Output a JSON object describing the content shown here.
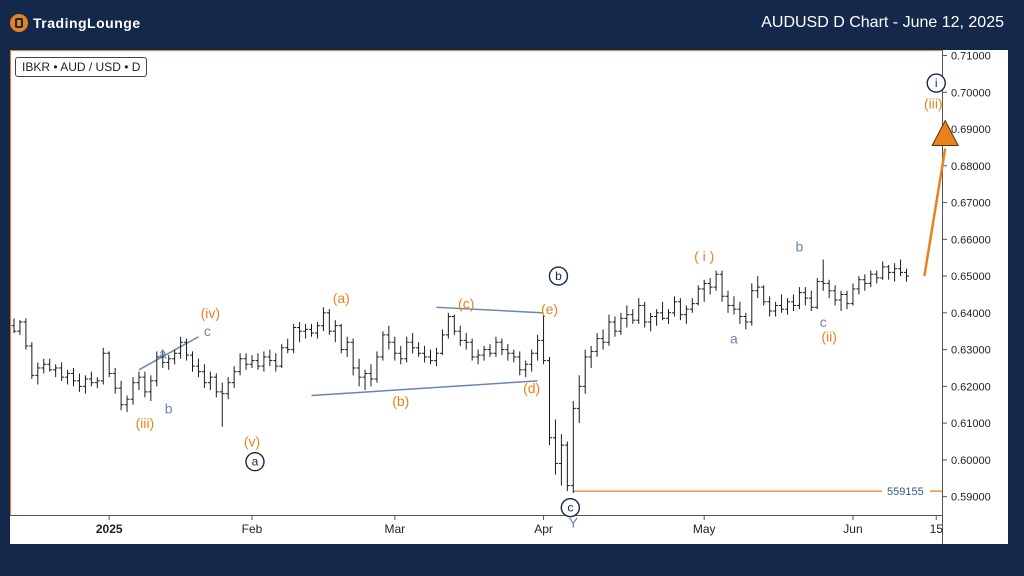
{
  "header": {
    "logo_text": "TradingLounge",
    "title": "AUDUSD D Chart - June 12, 2025"
  },
  "symbol_label": "IBKR • AUD / USD • D",
  "chart_data": {
    "type": "candlestick",
    "ylim": [
      0.585,
      0.7115
    ],
    "y_ticks": [
      "0.71000",
      "0.70000",
      "0.69000",
      "0.68000",
      "0.67000",
      "0.66000",
      "0.65000",
      "0.64000",
      "0.63000",
      "0.62000",
      "0.61000",
      "0.60000",
      "0.59000"
    ],
    "x_ticks": [
      {
        "label": "2025",
        "bar": 16,
        "bold": true
      },
      {
        "label": "Feb",
        "bar": 40
      },
      {
        "label": "Mar",
        "bar": 64
      },
      {
        "label": "Apr",
        "bar": 89
      },
      {
        "label": "May",
        "bar": 116
      },
      {
        "label": "Jun",
        "bar": 141
      },
      {
        "label": "15",
        "bar": 155
      }
    ],
    "bars": [
      [
        0.6365,
        0.6385,
        0.6345,
        0.635
      ],
      [
        0.635,
        0.638,
        0.634,
        0.6375
      ],
      [
        0.6375,
        0.6385,
        0.63,
        0.631
      ],
      [
        0.631,
        0.632,
        0.622,
        0.623
      ],
      [
        0.623,
        0.6265,
        0.6205,
        0.625
      ],
      [
        0.625,
        0.6275,
        0.6235,
        0.626
      ],
      [
        0.626,
        0.6275,
        0.624,
        0.6245
      ],
      [
        0.6245,
        0.626,
        0.6225,
        0.625
      ],
      [
        0.625,
        0.6265,
        0.6215,
        0.6225
      ],
      [
        0.6225,
        0.6245,
        0.6205,
        0.6235
      ],
      [
        0.6235,
        0.625,
        0.62,
        0.6215
      ],
      [
        0.6215,
        0.6235,
        0.6185,
        0.62
      ],
      [
        0.62,
        0.623,
        0.618,
        0.622
      ],
      [
        0.622,
        0.624,
        0.62,
        0.621
      ],
      [
        0.621,
        0.6225,
        0.6195,
        0.6215
      ],
      [
        0.6215,
        0.6305,
        0.6205,
        0.629
      ],
      [
        0.629,
        0.6295,
        0.6225,
        0.6235
      ],
      [
        0.6235,
        0.625,
        0.618,
        0.6195
      ],
      [
        0.6195,
        0.6215,
        0.6135,
        0.615
      ],
      [
        0.615,
        0.6175,
        0.613,
        0.6165
      ],
      [
        0.6165,
        0.6225,
        0.615,
        0.621
      ],
      [
        0.621,
        0.624,
        0.619,
        0.6225
      ],
      [
        0.6225,
        0.624,
        0.617,
        0.6185
      ],
      [
        0.6185,
        0.623,
        0.616,
        0.6215
      ],
      [
        0.6215,
        0.6295,
        0.62,
        0.628
      ],
      [
        0.628,
        0.63,
        0.625,
        0.6265
      ],
      [
        0.6265,
        0.6285,
        0.6245,
        0.6275
      ],
      [
        0.6275,
        0.63,
        0.626,
        0.629
      ],
      [
        0.629,
        0.6335,
        0.6275,
        0.632
      ],
      [
        0.632,
        0.633,
        0.627,
        0.6285
      ],
      [
        0.6285,
        0.6295,
        0.624,
        0.6255
      ],
      [
        0.6255,
        0.6275,
        0.6225,
        0.624
      ],
      [
        0.624,
        0.626,
        0.6195,
        0.621
      ],
      [
        0.621,
        0.624,
        0.619,
        0.6225
      ],
      [
        0.6225,
        0.6235,
        0.617,
        0.6185
      ],
      [
        0.6185,
        0.621,
        0.609,
        0.618
      ],
      [
        0.618,
        0.6225,
        0.6165,
        0.621
      ],
      [
        0.621,
        0.6255,
        0.6195,
        0.624
      ],
      [
        0.624,
        0.629,
        0.623,
        0.6275
      ],
      [
        0.6275,
        0.629,
        0.6245,
        0.626
      ],
      [
        0.626,
        0.6285,
        0.625,
        0.627
      ],
      [
        0.627,
        0.629,
        0.6245,
        0.6255
      ],
      [
        0.6255,
        0.6295,
        0.624,
        0.628
      ],
      [
        0.628,
        0.63,
        0.6255,
        0.627
      ],
      [
        0.627,
        0.629,
        0.624,
        0.6255
      ],
      [
        0.6255,
        0.6315,
        0.625,
        0.6305
      ],
      [
        0.6305,
        0.633,
        0.629,
        0.63
      ],
      [
        0.63,
        0.637,
        0.629,
        0.636
      ],
      [
        0.636,
        0.6375,
        0.632,
        0.635
      ],
      [
        0.635,
        0.637,
        0.633,
        0.6355
      ],
      [
        0.6355,
        0.637,
        0.6335,
        0.6345
      ],
      [
        0.6345,
        0.6375,
        0.633,
        0.6365
      ],
      [
        0.6365,
        0.6415,
        0.635,
        0.64
      ],
      [
        0.64,
        0.641,
        0.634,
        0.635
      ],
      [
        0.635,
        0.638,
        0.632,
        0.6365
      ],
      [
        0.6365,
        0.637,
        0.629,
        0.63
      ],
      [
        0.63,
        0.6335,
        0.628,
        0.632
      ],
      [
        0.632,
        0.633,
        0.623,
        0.625
      ],
      [
        0.625,
        0.6275,
        0.62,
        0.6225
      ],
      [
        0.6225,
        0.6245,
        0.619,
        0.6235
      ],
      [
        0.6235,
        0.626,
        0.62,
        0.622
      ],
      [
        0.622,
        0.6295,
        0.621,
        0.628
      ],
      [
        0.628,
        0.635,
        0.627,
        0.634
      ],
      [
        0.634,
        0.6365,
        0.63,
        0.632
      ],
      [
        0.632,
        0.6335,
        0.627,
        0.629
      ],
      [
        0.629,
        0.631,
        0.626,
        0.6275
      ],
      [
        0.6275,
        0.6335,
        0.6265,
        0.632
      ],
      [
        0.632,
        0.6345,
        0.629,
        0.6305
      ],
      [
        0.6305,
        0.632,
        0.628,
        0.629
      ],
      [
        0.629,
        0.631,
        0.6265,
        0.628
      ],
      [
        0.628,
        0.63,
        0.626,
        0.627
      ],
      [
        0.627,
        0.6305,
        0.6255,
        0.629
      ],
      [
        0.629,
        0.6355,
        0.6285,
        0.634
      ],
      [
        0.634,
        0.64,
        0.633,
        0.639
      ],
      [
        0.639,
        0.6395,
        0.634,
        0.635
      ],
      [
        0.635,
        0.6365,
        0.631,
        0.6325
      ],
      [
        0.6325,
        0.6345,
        0.63,
        0.632
      ],
      [
        0.632,
        0.633,
        0.627,
        0.628
      ],
      [
        0.628,
        0.63,
        0.626,
        0.6285
      ],
      [
        0.6285,
        0.631,
        0.627,
        0.63
      ],
      [
        0.63,
        0.6315,
        0.628,
        0.629
      ],
      [
        0.629,
        0.6335,
        0.628,
        0.632
      ],
      [
        0.632,
        0.633,
        0.6285,
        0.63
      ],
      [
        0.63,
        0.6315,
        0.627,
        0.629
      ],
      [
        0.629,
        0.63,
        0.6265,
        0.628
      ],
      [
        0.628,
        0.6295,
        0.623,
        0.6245
      ],
      [
        0.6245,
        0.627,
        0.6225,
        0.626
      ],
      [
        0.626,
        0.63,
        0.624,
        0.629
      ],
      [
        0.629,
        0.634,
        0.627,
        0.6325
      ],
      [
        0.6325,
        0.6395,
        0.626,
        0.627
      ],
      [
        0.627,
        0.628,
        0.604,
        0.606
      ],
      [
        0.606,
        0.611,
        0.596,
        0.599
      ],
      [
        0.599,
        0.607,
        0.593,
        0.604
      ],
      [
        0.604,
        0.605,
        0.5915,
        0.593
      ],
      [
        0.593,
        0.616,
        0.591,
        0.614
      ],
      [
        0.614,
        0.623,
        0.61,
        0.62
      ],
      [
        0.62,
        0.63,
        0.618,
        0.628
      ],
      [
        0.628,
        0.631,
        0.625,
        0.6295
      ],
      [
        0.6295,
        0.6345,
        0.628,
        0.633
      ],
      [
        0.633,
        0.6355,
        0.63,
        0.632
      ],
      [
        0.632,
        0.6395,
        0.631,
        0.6375
      ],
      [
        0.6375,
        0.639,
        0.6335,
        0.635
      ],
      [
        0.635,
        0.64,
        0.634,
        0.6385
      ],
      [
        0.6385,
        0.642,
        0.636,
        0.6395
      ],
      [
        0.6395,
        0.641,
        0.637,
        0.638
      ],
      [
        0.638,
        0.644,
        0.637,
        0.642
      ],
      [
        0.642,
        0.643,
        0.636,
        0.6375
      ],
      [
        0.6375,
        0.64,
        0.635,
        0.639
      ],
      [
        0.639,
        0.641,
        0.6365,
        0.64
      ],
      [
        0.64,
        0.643,
        0.638,
        0.6385
      ],
      [
        0.6385,
        0.641,
        0.637,
        0.64
      ],
      [
        0.64,
        0.6445,
        0.639,
        0.643
      ],
      [
        0.643,
        0.644,
        0.638,
        0.6395
      ],
      [
        0.6395,
        0.642,
        0.637,
        0.641
      ],
      [
        0.641,
        0.644,
        0.64,
        0.6425
      ],
      [
        0.6425,
        0.6475,
        0.642,
        0.6465
      ],
      [
        0.6465,
        0.649,
        0.643,
        0.648
      ],
      [
        0.648,
        0.6495,
        0.645,
        0.647
      ],
      [
        0.647,
        0.6515,
        0.646,
        0.6505
      ],
      [
        0.6505,
        0.6515,
        0.643,
        0.6445
      ],
      [
        0.6445,
        0.646,
        0.64,
        0.642
      ],
      [
        0.642,
        0.6445,
        0.6395,
        0.641
      ],
      [
        0.641,
        0.643,
        0.637,
        0.639
      ],
      [
        0.639,
        0.64,
        0.6355,
        0.6375
      ],
      [
        0.6375,
        0.648,
        0.6365,
        0.646
      ],
      [
        0.646,
        0.65,
        0.644,
        0.647
      ],
      [
        0.647,
        0.6475,
        0.642,
        0.643
      ],
      [
        0.643,
        0.6445,
        0.639,
        0.6405
      ],
      [
        0.6405,
        0.643,
        0.639,
        0.642
      ],
      [
        0.642,
        0.645,
        0.64,
        0.641
      ],
      [
        0.641,
        0.644,
        0.6395,
        0.643
      ],
      [
        0.643,
        0.645,
        0.6405,
        0.642
      ],
      [
        0.642,
        0.647,
        0.641,
        0.6455
      ],
      [
        0.6455,
        0.647,
        0.642,
        0.644
      ],
      [
        0.644,
        0.646,
        0.6405,
        0.6415
      ],
      [
        0.6415,
        0.6495,
        0.641,
        0.6485
      ],
      [
        0.6485,
        0.6545,
        0.646,
        0.648
      ],
      [
        0.648,
        0.649,
        0.644,
        0.646
      ],
      [
        0.646,
        0.6475,
        0.642,
        0.6435
      ],
      [
        0.6435,
        0.646,
        0.6405,
        0.645
      ],
      [
        0.645,
        0.646,
        0.641,
        0.6425
      ],
      [
        0.6425,
        0.648,
        0.642,
        0.6465
      ],
      [
        0.6465,
        0.65,
        0.645,
        0.649
      ],
      [
        0.649,
        0.6505,
        0.646,
        0.648
      ],
      [
        0.648,
        0.6515,
        0.647,
        0.6505
      ],
      [
        0.6505,
        0.6515,
        0.648,
        0.6495
      ],
      [
        0.6495,
        0.654,
        0.649,
        0.6525
      ],
      [
        0.6525,
        0.653,
        0.649,
        0.651
      ],
      [
        0.651,
        0.6535,
        0.6485,
        0.652
      ],
      [
        0.652,
        0.6545,
        0.65,
        0.651
      ],
      [
        0.651,
        0.652,
        0.6485,
        0.65
      ]
    ],
    "trendlines": [
      {
        "id": "wedge-upper",
        "color": "#6a86b0",
        "p1": [
          71,
          0.6415
        ],
        "p2": [
          89,
          0.64
        ]
      },
      {
        "id": "wedge-lower",
        "color": "#6a86b0",
        "p1": [
          50,
          0.6175
        ],
        "p2": [
          88,
          0.6215
        ]
      },
      {
        "id": "minor-c-leg",
        "color": "#6a86b0",
        "p1": [
          21,
          0.6245
        ],
        "p2": [
          31,
          0.6335
        ]
      }
    ],
    "target_arrow": {
      "color": "#e8821c",
      "p1": [
        153,
        0.65
      ],
      "p2": [
        156.5,
        0.6885
      ]
    },
    "level": {
      "value": 0.5915,
      "label": "559155",
      "start_bar": 94,
      "color": "#e8821c"
    },
    "wave_labels": [
      {
        "text": "(iii)",
        "bar": 22,
        "price": 0.61,
        "color": "#e8821c",
        "style": "text"
      },
      {
        "text": "(iv)",
        "bar": 33,
        "price": 0.64,
        "color": "#e8821c",
        "style": "text"
      },
      {
        "text": "(v)",
        "bar": 40,
        "price": 0.605,
        "color": "#e8821c",
        "style": "text"
      },
      {
        "text": "a",
        "bar": 40.5,
        "price": 0.5995,
        "color": "#13284b",
        "style": "circle"
      },
      {
        "text": "a",
        "bar": 25,
        "price": 0.629,
        "color": "#6a86b0",
        "style": "text"
      },
      {
        "text": "b",
        "bar": 26,
        "price": 0.614,
        "color": "#6a86b0",
        "style": "text"
      },
      {
        "text": "c",
        "bar": 32.5,
        "price": 0.635,
        "color": "#6a86b0",
        "style": "text"
      },
      {
        "text": "(a)",
        "bar": 55,
        "price": 0.644,
        "color": "#e8821c",
        "style": "text"
      },
      {
        "text": "(b)",
        "bar": 65,
        "price": 0.616,
        "color": "#e8821c",
        "style": "text"
      },
      {
        "text": "(c)",
        "bar": 76,
        "price": 0.6425,
        "color": "#e8821c",
        "style": "text"
      },
      {
        "text": "(d)",
        "bar": 87,
        "price": 0.6195,
        "color": "#e8821c",
        "style": "text"
      },
      {
        "text": "(e)",
        "bar": 90,
        "price": 0.641,
        "color": "#e8821c",
        "style": "text"
      },
      {
        "text": "b",
        "bar": 91.5,
        "price": 0.65,
        "color": "#13284b",
        "style": "circle"
      },
      {
        "text": "c",
        "bar": 93.5,
        "price": 0.587,
        "color": "#13284b",
        "style": "circle"
      },
      {
        "text": "Y",
        "bar": 94,
        "price": 0.583,
        "color": "#6a86b0",
        "style": "text"
      },
      {
        "text": "( i )",
        "bar": 116,
        "price": 0.6555,
        "color": "#e8821c",
        "style": "text"
      },
      {
        "text": "a",
        "bar": 121,
        "price": 0.633,
        "color": "#6a86b0",
        "style": "text"
      },
      {
        "text": "b",
        "bar": 132,
        "price": 0.658,
        "color": "#6a86b0",
        "style": "text"
      },
      {
        "text": "c",
        "bar": 136,
        "price": 0.6375,
        "color": "#6a86b0",
        "style": "text"
      },
      {
        "text": "(ii)",
        "bar": 137,
        "price": 0.6335,
        "color": "#e8821c",
        "style": "text"
      },
      {
        "text": "(iii)",
        "bar": 154.5,
        "price": 0.697,
        "color": "#e8821c",
        "style": "text"
      },
      {
        "text": "i",
        "bar": 155,
        "price": 0.7025,
        "color": "#13284b",
        "style": "circle"
      }
    ]
  }
}
